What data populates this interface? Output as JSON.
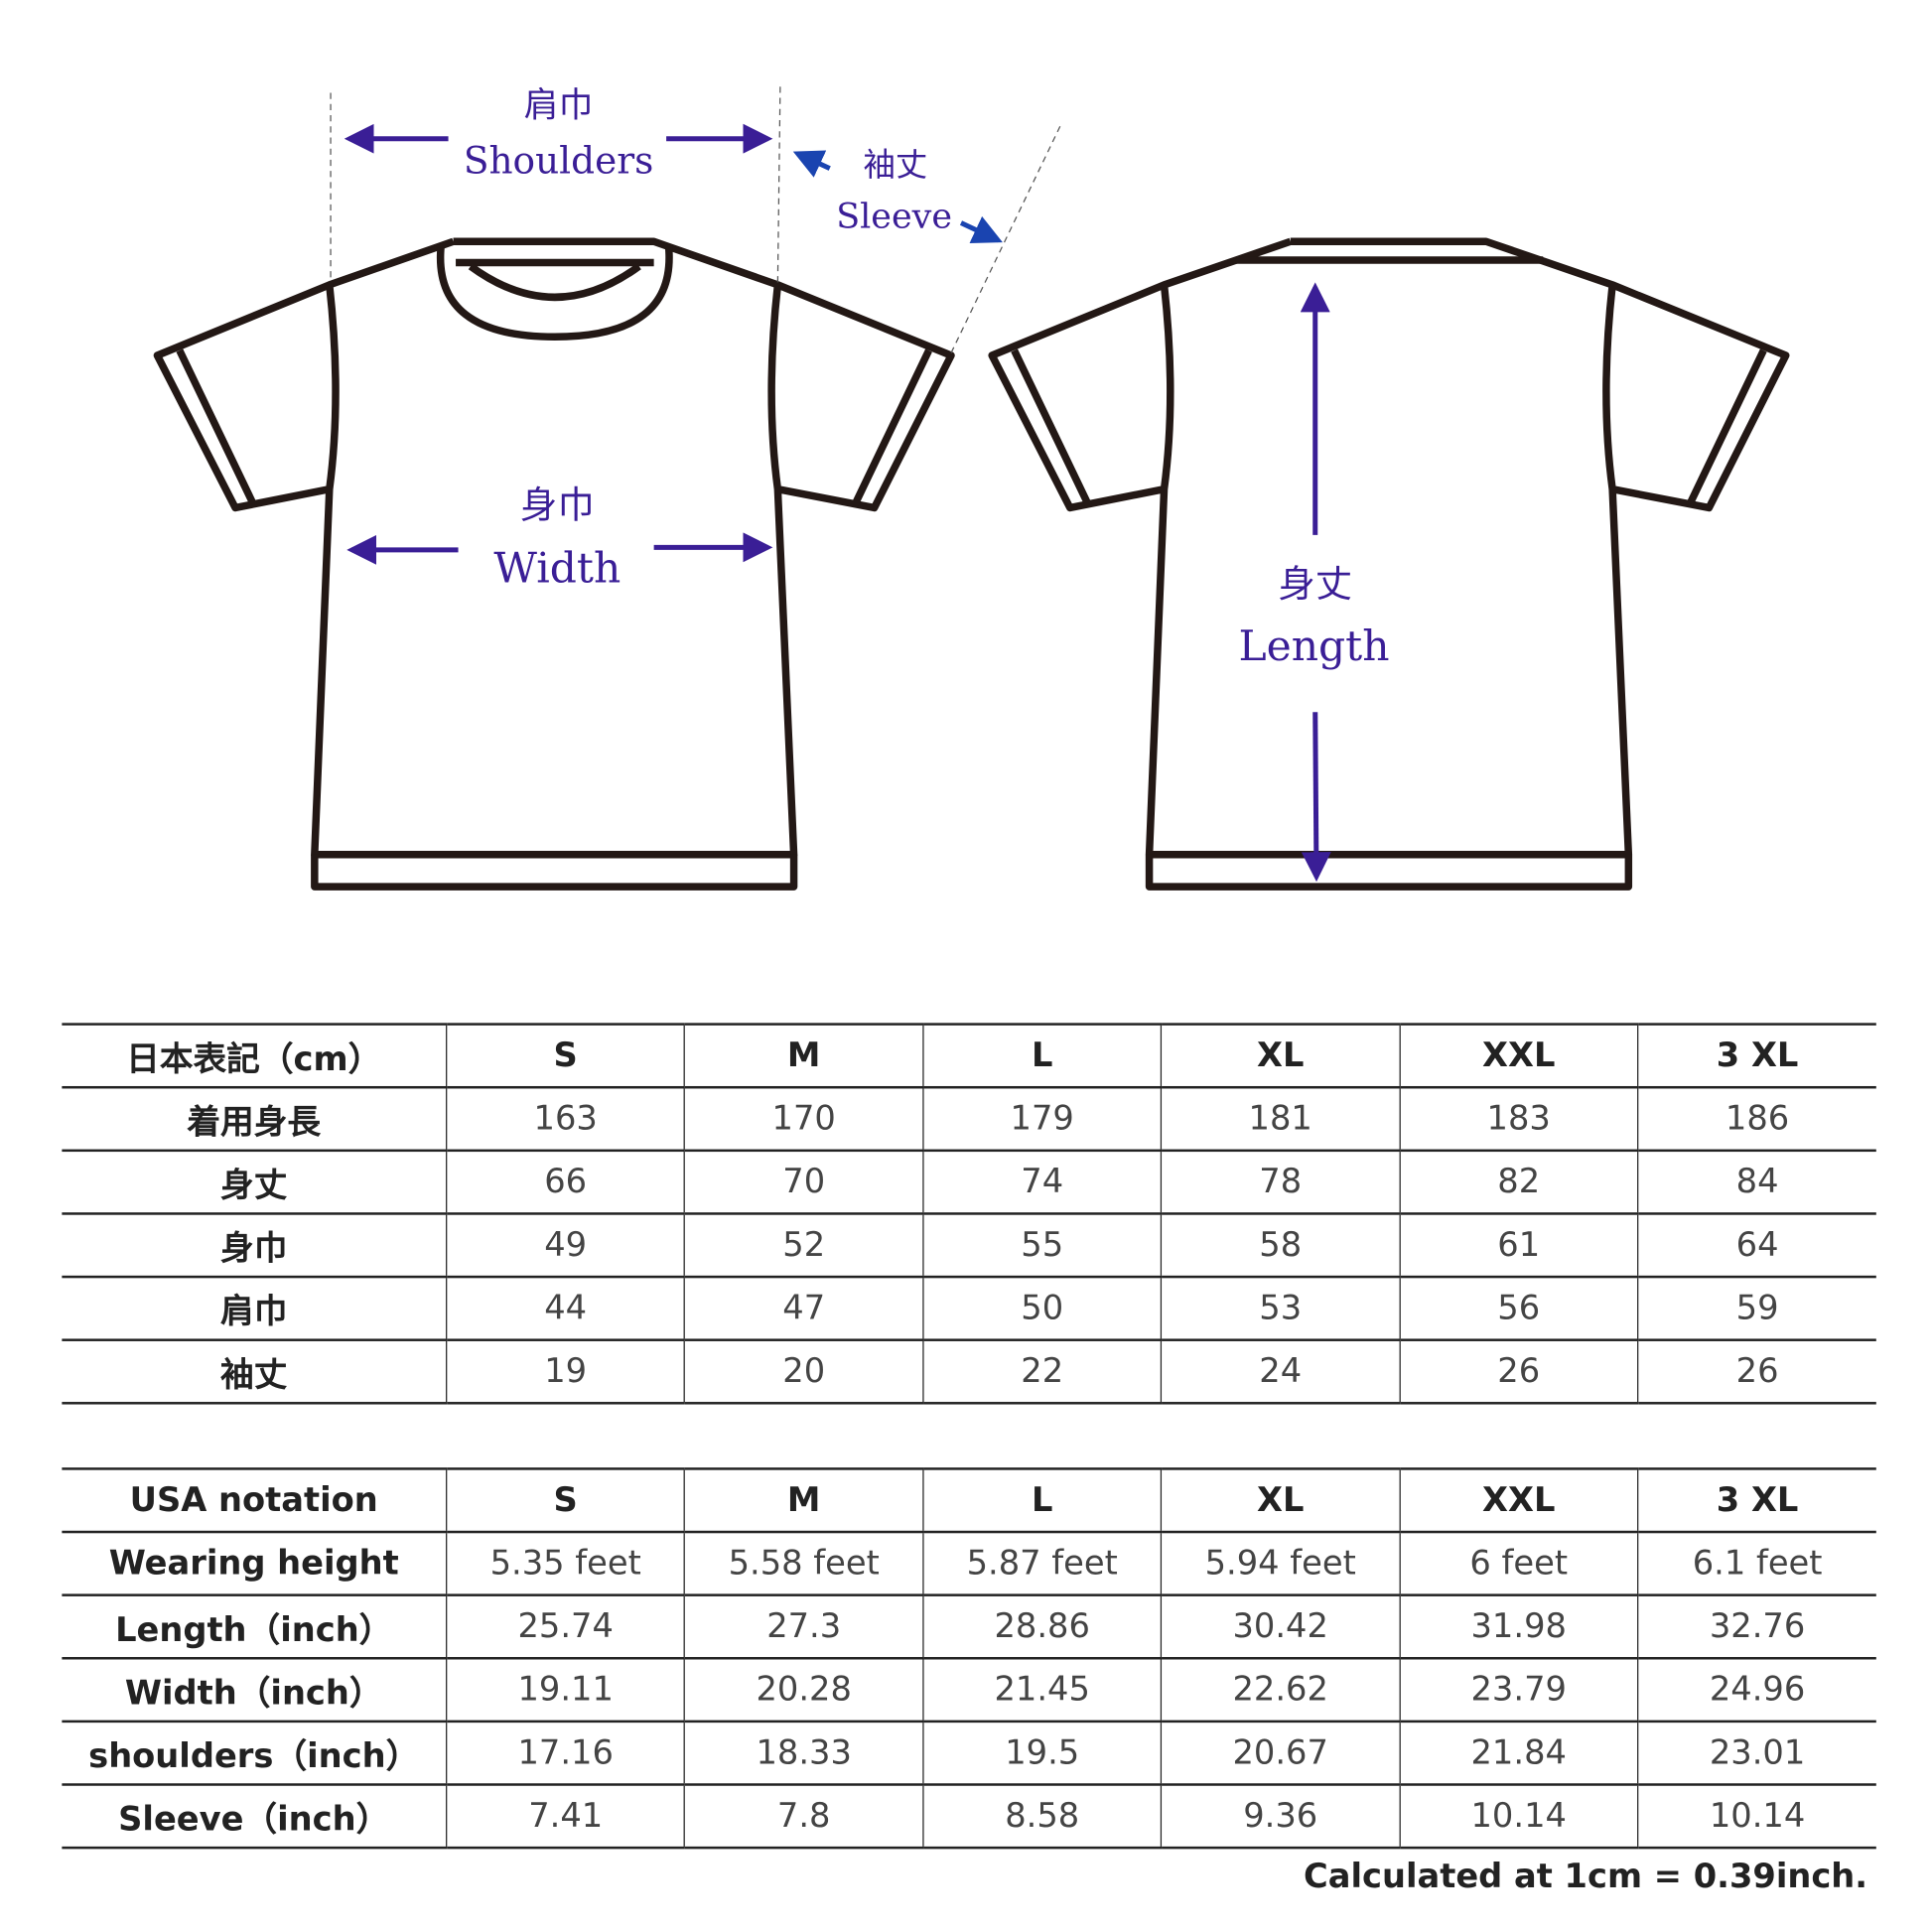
{
  "diagram": {
    "shoulders": {
      "jp": "肩巾",
      "en": "Shoulders"
    },
    "sleeve": {
      "jp": "袖丈",
      "en": "Sleeve"
    },
    "width": {
      "jp": "身巾",
      "en": "Width"
    },
    "length": {
      "jp": "身丈",
      "en": "Length"
    },
    "colors": {
      "arrow": "#3a1e96",
      "sleeve_arrow": "#1a44b0",
      "outline": "#231815"
    }
  },
  "jp_table": {
    "header": [
      "日本表記（cm）",
      "S",
      "M",
      "L",
      "XL",
      "XXL",
      "3 XL"
    ],
    "rows": [
      [
        "着用身長",
        "163",
        "170",
        "179",
        "181",
        "183",
        "186"
      ],
      [
        "身丈",
        "66",
        "70",
        "74",
        "78",
        "82",
        "84"
      ],
      [
        "身巾",
        "49",
        "52",
        "55",
        "58",
        "61",
        "64"
      ],
      [
        "肩巾",
        "44",
        "47",
        "50",
        "53",
        "56",
        "59"
      ],
      [
        "袖丈",
        "19",
        "20",
        "22",
        "24",
        "26",
        "26"
      ]
    ]
  },
  "us_table": {
    "header": [
      "USA notation",
      "S",
      "M",
      "L",
      "XL",
      "XXL",
      "3 XL"
    ],
    "rows": [
      [
        "Wearing height",
        "5.35 feet",
        "5.58 feet",
        "5.87 feet",
        "5.94 feet",
        "6 feet",
        "6.1 feet"
      ],
      [
        "Length（inch）",
        "25.74",
        "27.3",
        "28.86",
        "30.42",
        "31.98",
        "32.76"
      ],
      [
        "Width（inch）",
        "19.11",
        "20.28",
        "21.45",
        "22.62",
        "23.79",
        "24.96"
      ],
      [
        "shoulders（inch）",
        "17.16",
        "18.33",
        "19.5",
        "20.67",
        "21.84",
        "23.01"
      ],
      [
        "Sleeve（inch）",
        "7.41",
        "7.8",
        "8.58",
        "9.36",
        "10.14",
        "10.14"
      ]
    ]
  },
  "note": "Calculated at 1cm = 0.39inch."
}
